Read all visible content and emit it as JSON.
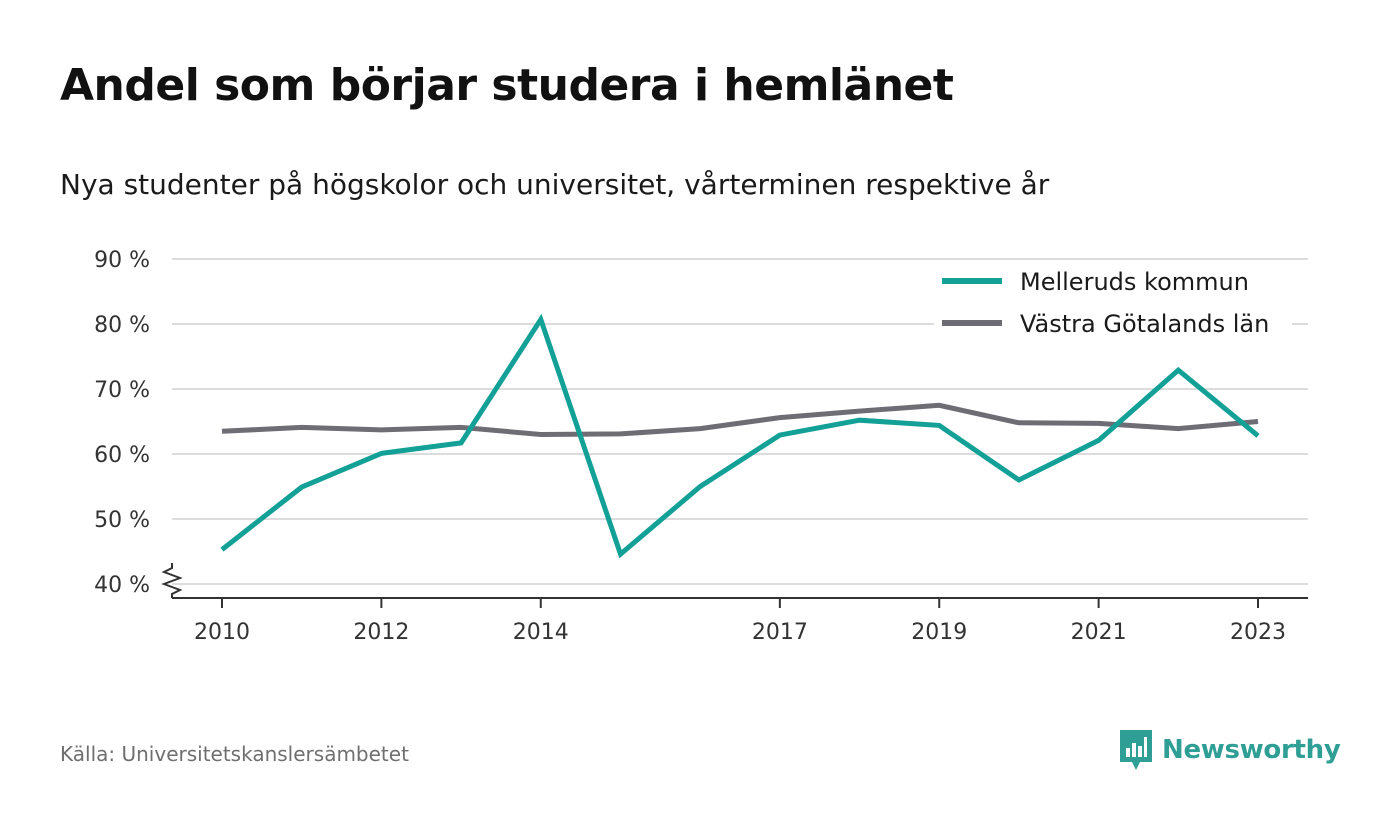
{
  "title": "Andel som börjar studera i hemlänet",
  "subtitle": "Nya studenter på högskolor och universitet, vårterminen respektive år",
  "source": "Källa: Universitetskanslersämbetet",
  "brand": {
    "name": "Newsworthy",
    "icon": "newsworthy-logo-icon",
    "color": "#2f9e95"
  },
  "chart_data": {
    "type": "line",
    "title": "Andel som börjar studera i hemlänet",
    "subtitle": "Nya studenter på högskolor och universitet, vårterminen respektive år",
    "xlabel": "",
    "ylabel": "",
    "x": [
      2010,
      2011,
      2012,
      2013,
      2014,
      2015,
      2016,
      2017,
      2018,
      2019,
      2020,
      2021,
      2022,
      2023
    ],
    "x_tick_labels": [
      "2010",
      "2012",
      "2014",
      "2017",
      "2019",
      "2021",
      "2023"
    ],
    "x_ticks": [
      2010,
      2012,
      2014,
      2017,
      2019,
      2021,
      2023
    ],
    "y_tick_labels": [
      "40 %",
      "50 %",
      "60 %",
      "70 %",
      "80 %",
      "90 %"
    ],
    "y_ticks": [
      40,
      50,
      60,
      70,
      80,
      90
    ],
    "ylim": [
      40,
      90
    ],
    "y_axis_break": true,
    "grid": true,
    "legend_position": "top-right",
    "series": [
      {
        "name": "Melleruds kommun",
        "color": "#13a096",
        "values": [
          45.3,
          54.9,
          60.1,
          61.7,
          80.7,
          44.6,
          55.0,
          62.9,
          65.2,
          64.4,
          56.0,
          62.1,
          72.9,
          62.8
        ]
      },
      {
        "name": "Västra Götalands län",
        "color": "#6e6d76",
        "values": [
          63.5,
          64.1,
          63.7,
          64.1,
          63.0,
          63.1,
          63.9,
          65.6,
          66.6,
          67.5,
          64.8,
          64.7,
          63.9,
          65.0
        ]
      }
    ]
  }
}
